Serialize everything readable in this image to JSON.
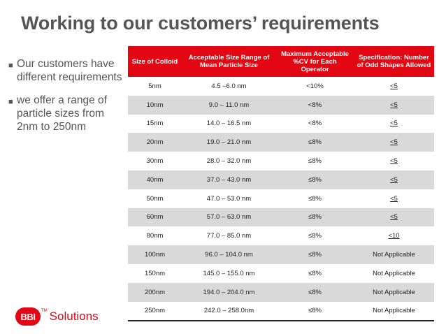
{
  "title": "Working to our customers’ requirements",
  "bullets": [
    "Our customers have different requirements",
    "we offer a range of particle sizes from 2nm to 250nm"
  ],
  "table": {
    "headers": [
      "Size of Colloid",
      "Acceptable Size Range of Mean Particle Size",
      "Maximum Acceptable %CV for Each Operator",
      "Specification: Number of Odd Shapes Allowed"
    ],
    "rows": [
      [
        "5nm",
        "4.5 –6.0 nm",
        "<10%",
        "<5"
      ],
      [
        "10nm",
        "9.0 – 11.0 nm",
        "<8%",
        "<5"
      ],
      [
        "15nm",
        "14.0 – 16.5 nm",
        "<8%",
        "<5"
      ],
      [
        "20nm",
        "19.0 – 21.0 nm",
        "≤8%",
        "<5"
      ],
      [
        "30nm",
        "28.0 – 32.0 nm",
        "≤8%",
        "<5"
      ],
      [
        "40nm",
        "37.0 – 43.0 nm",
        "≤8%",
        "<5"
      ],
      [
        "50nm",
        "47.0 – 53.0 nm",
        "≤8%",
        "<5"
      ],
      [
        "60nm",
        "57.0 – 63.0 nm",
        "≤8%",
        "<5"
      ],
      [
        "80nm",
        "77.0 – 85.0 nm",
        "≤8%",
        "<10"
      ],
      [
        "100nm",
        "96.0 – 104.0 nm",
        "≤8%",
        "Not Applicable"
      ],
      [
        "150nm",
        "145.0 – 155.0 nm",
        "≤8%",
        "Not Applicable"
      ],
      [
        "200nm",
        "194.0 – 204.0 nm",
        "≤8%",
        "Not Applicable"
      ],
      [
        "250nm",
        "242.0 – 258.0nm",
        "≤8%",
        "Not Applicable"
      ]
    ]
  },
  "logo": {
    "badge": "BBI",
    "text": "Solutions",
    "tm": "TM"
  },
  "colors": {
    "accent": "#e30613",
    "title": "#555555",
    "stripe": "#d9d9d9"
  }
}
